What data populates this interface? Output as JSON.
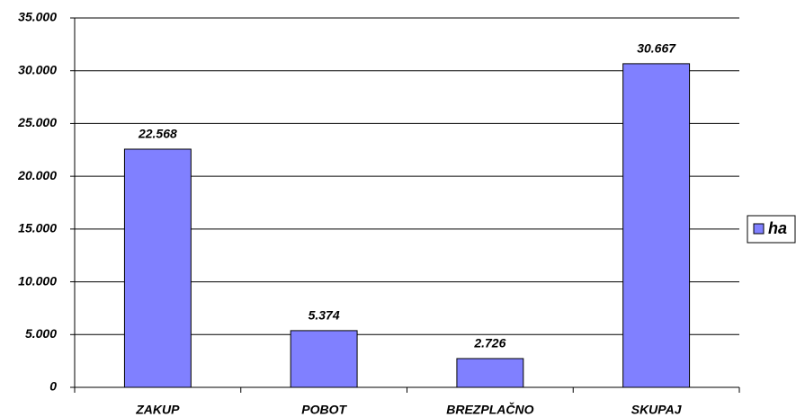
{
  "chart_data": {
    "type": "bar",
    "categories": [
      "ZAKUP",
      "POBOT",
      "BREZPLAČNO",
      "SKUPAJ"
    ],
    "series": [
      {
        "name": "ha",
        "color": "#8080ff",
        "values": [
          22568,
          5374,
          2726,
          30667
        ],
        "value_labels": [
          "22.568",
          "5.374",
          "2.726",
          "30.667"
        ]
      }
    ],
    "ylim": [
      0,
      35000
    ],
    "yticks": [
      0,
      {
        "value": 5000,
        "label": "5.000"
      },
      {
        "value": 10000,
        "label": "10.000"
      },
      {
        "value": 15000,
        "label": "15.000"
      },
      {
        "value": 20000,
        "label": "20.000"
      },
      {
        "value": 25000,
        "label": "25.000"
      },
      {
        "value": 30000,
        "label": "30.000"
      },
      {
        "value": 35000,
        "label": "35.000"
      }
    ],
    "grid": true,
    "legend": "right"
  }
}
